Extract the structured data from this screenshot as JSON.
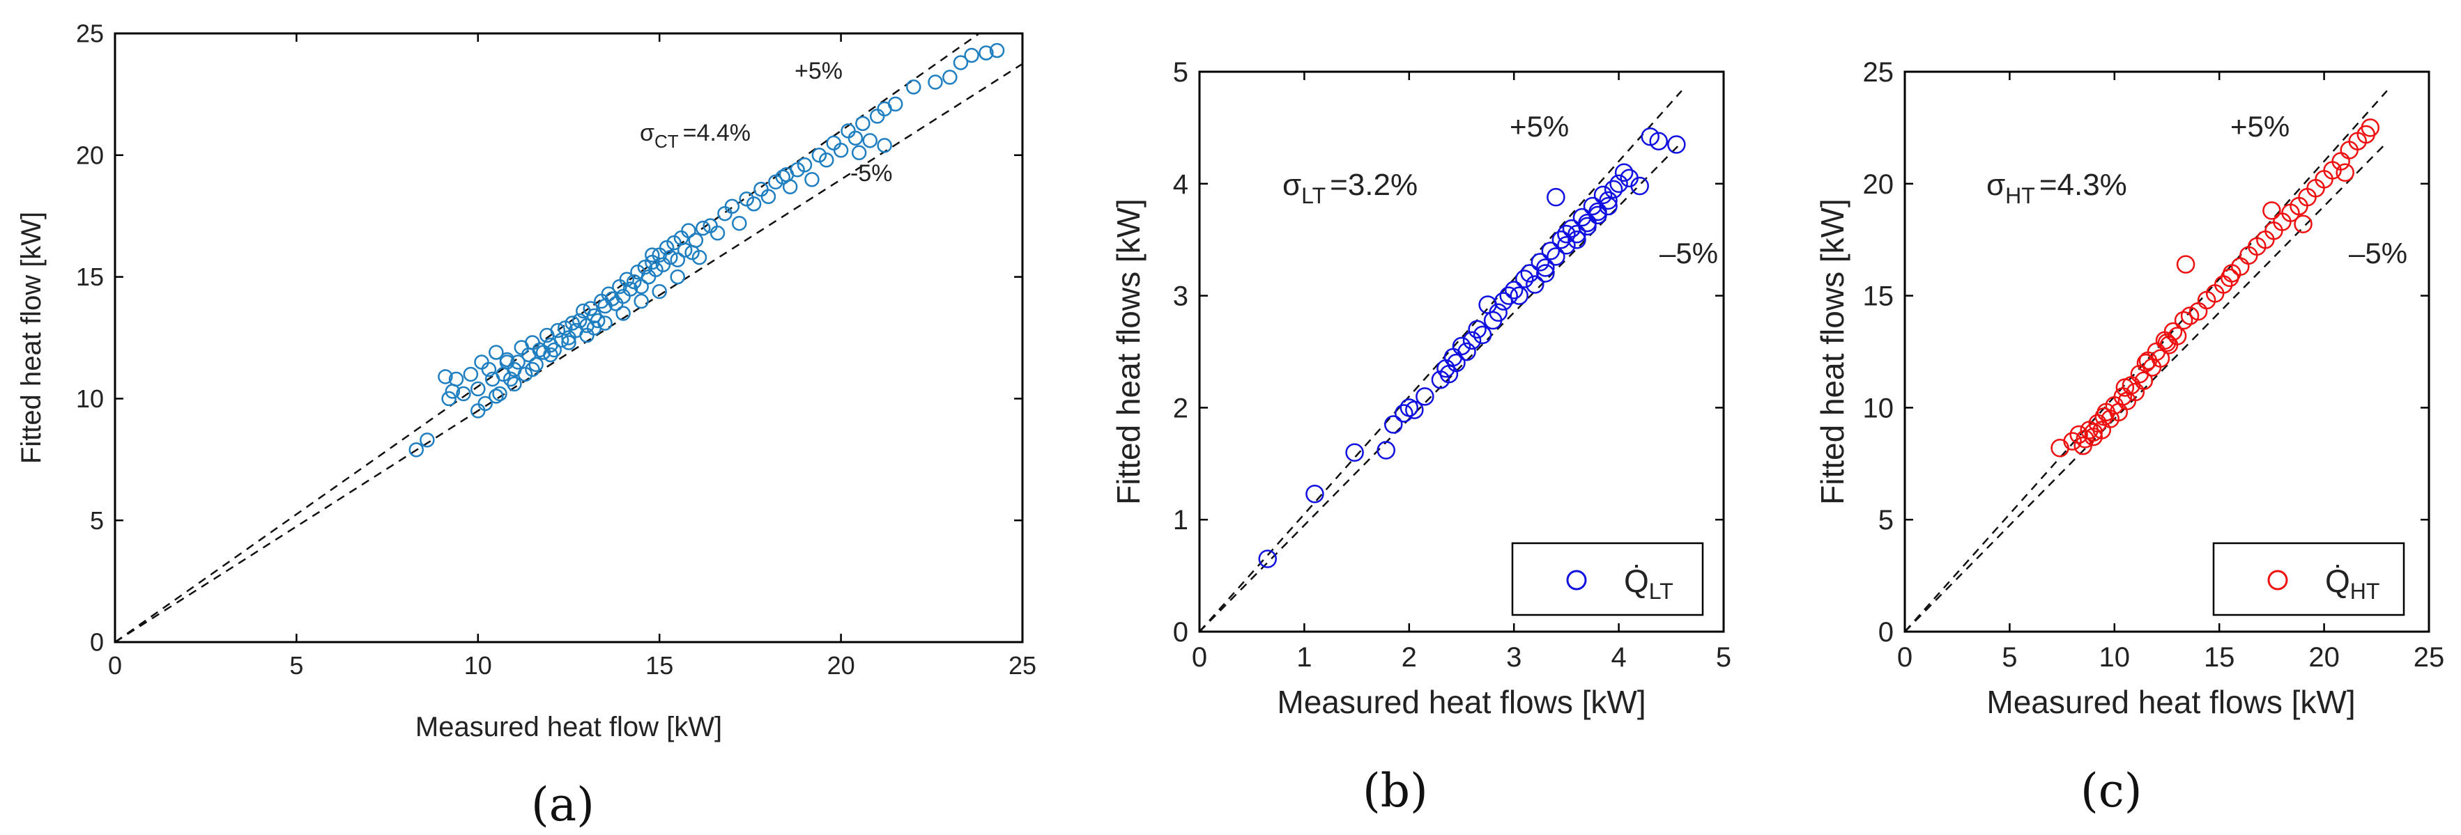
{
  "figure": {
    "panels": [
      "(a)",
      "(b)",
      "(c)"
    ]
  },
  "chart_data": [
    {
      "id": "a",
      "type": "scatter",
      "panel_label": "(a)",
      "xlabel": "Measured heat flow [kW]",
      "ylabel": "Fitted heat flow [kW]",
      "xlim": [
        0,
        25
      ],
      "ylim": [
        0,
        25
      ],
      "xticks": [
        "0",
        "5",
        "10",
        "15",
        "20",
        "25"
      ],
      "yticks": [
        "0",
        "5",
        "10",
        "15",
        "20",
        "25"
      ],
      "marker_color": "#1f7fc1",
      "reference_lines": [
        {
          "label": "+5%",
          "slope": 1.05
        },
        {
          "label": "-5%",
          "slope": 0.95
        }
      ],
      "sigma": {
        "symbol": "σ",
        "subscript": "CT",
        "value": "=4.4%"
      },
      "x": [
        8.3,
        8.6,
        9.1,
        9.2,
        9.4,
        9.6,
        9.8,
        10.0,
        10.1,
        10.2,
        10.3,
        10.4,
        10.5,
        10.6,
        10.7,
        10.8,
        10.9,
        11.0,
        11.1,
        11.2,
        11.3,
        11.4,
        11.5,
        11.6,
        11.7,
        11.8,
        11.9,
        12.0,
        12.1,
        12.2,
        12.3,
        12.4,
        12.5,
        12.6,
        12.7,
        12.8,
        12.9,
        13.0,
        13.1,
        13.2,
        13.3,
        13.4,
        13.5,
        13.6,
        13.7,
        13.8,
        13.9,
        14.0,
        14.1,
        14.2,
        14.3,
        14.4,
        14.5,
        14.6,
        14.7,
        14.8,
        14.9,
        15.0,
        15.1,
        15.2,
        15.3,
        15.4,
        15.5,
        15.6,
        15.7,
        15.8,
        15.9,
        16.0,
        16.2,
        16.4,
        16.6,
        16.8,
        17.0,
        17.2,
        17.4,
        17.6,
        17.8,
        18.0,
        18.2,
        18.4,
        18.6,
        18.8,
        19.0,
        19.2,
        19.4,
        19.6,
        19.8,
        20.0,
        20.2,
        20.4,
        20.6,
        20.8,
        21.0,
        21.2,
        21.5,
        22.0,
        22.6,
        23.0,
        23.3,
        23.6,
        24.0,
        24.3,
        10.0,
        10.5,
        11.0,
        11.5,
        12.0,
        12.5,
        13.0,
        13.5,
        14.0,
        14.5,
        15.0,
        15.5,
        9.3,
        10.8,
        13.2,
        14.8,
        16.1,
        18.5,
        20.5,
        21.2
      ],
      "y": [
        7.9,
        8.3,
        10.9,
        10.0,
        10.8,
        10.2,
        11.0,
        10.4,
        11.5,
        9.8,
        11.2,
        10.8,
        11.9,
        10.2,
        11.0,
        11.6,
        10.8,
        11.2,
        11.5,
        12.1,
        11.0,
        11.8,
        12.3,
        11.4,
        12.0,
        11.9,
        12.6,
        12.2,
        12.0,
        12.8,
        12.4,
        12.9,
        12.5,
        13.1,
        12.8,
        13.2,
        13.6,
        13.0,
        13.7,
        13.4,
        13.2,
        14.0,
        13.8,
        14.3,
        14.1,
        13.9,
        14.6,
        14.2,
        14.9,
        14.5,
        14.8,
        15.2,
        14.6,
        15.4,
        15.0,
        15.6,
        15.3,
        15.9,
        15.5,
        16.2,
        15.8,
        16.4,
        15.7,
        16.6,
        16.1,
        16.9,
        16.0,
        16.5,
        17.0,
        17.1,
        16.8,
        17.6,
        17.9,
        17.2,
        18.2,
        18.0,
        18.6,
        18.3,
        18.9,
        19.1,
        18.7,
        19.4,
        19.6,
        19.0,
        20.0,
        19.8,
        20.5,
        20.2,
        21.0,
        20.7,
        21.3,
        20.6,
        21.6,
        21.9,
        22.1,
        22.8,
        23.0,
        23.2,
        23.8,
        24.1,
        24.2,
        24.3,
        9.5,
        10.1,
        10.6,
        11.2,
        11.8,
        12.3,
        12.6,
        13.1,
        13.5,
        14.0,
        14.4,
        15.0,
        10.3,
        11.5,
        12.9,
        15.9,
        15.8,
        19.2,
        20.1,
        20.4
      ]
    },
    {
      "id": "b",
      "type": "scatter",
      "panel_label": "(b)",
      "xlabel": "Measured heat flows [kW]",
      "ylabel": "Fitted heat flows [kW]",
      "xlim": [
        0,
        5
      ],
      "ylim": [
        0,
        5
      ],
      "xticks": [
        "0",
        "1",
        "2",
        "3",
        "4",
        "5"
      ],
      "yticks": [
        "0",
        "1",
        "2",
        "3",
        "4",
        "5"
      ],
      "marker_color": "#1010e0",
      "reference_lines": [
        {
          "label": "+5%",
          "slope": 1.05
        },
        {
          "label": "–5%",
          "slope": 0.95
        }
      ],
      "sigma": {
        "symbol": "σ",
        "subscript": "LT",
        "value": "=3.2%"
      },
      "legend": {
        "symbol": "Q̇",
        "subscript": "LT",
        "position": "bottom-right"
      },
      "x": [
        0.65,
        1.1,
        1.48,
        1.78,
        1.85,
        1.95,
        2.0,
        2.05,
        2.15,
        2.3,
        2.35,
        2.38,
        2.42,
        2.45,
        2.5,
        2.55,
        2.6,
        2.65,
        2.7,
        2.75,
        2.8,
        2.85,
        2.9,
        2.95,
        3.0,
        3.05,
        3.1,
        3.15,
        3.2,
        3.25,
        3.3,
        3.35,
        3.4,
        3.45,
        3.5,
        3.55,
        3.6,
        3.65,
        3.7,
        3.75,
        3.8,
        3.85,
        3.9,
        3.95,
        4.0,
        4.05,
        4.1,
        4.2,
        4.3,
        4.38,
        4.55,
        3.4,
        3.6,
        3.8,
        3.3,
        3.5,
        3.7,
        3.9
      ],
      "y": [
        0.65,
        1.23,
        1.6,
        1.62,
        1.85,
        1.95,
        2.0,
        1.98,
        2.1,
        2.25,
        2.35,
        2.3,
        2.45,
        2.4,
        2.55,
        2.5,
        2.6,
        2.7,
        2.65,
        2.92,
        2.78,
        2.85,
        2.95,
        3.0,
        3.05,
        3.0,
        3.15,
        3.2,
        3.1,
        3.3,
        3.2,
        3.4,
        3.88,
        3.5,
        3.45,
        3.6,
        3.55,
        3.7,
        3.65,
        3.8,
        3.75,
        3.9,
        3.85,
        3.95,
        4.0,
        4.1,
        4.05,
        3.98,
        4.42,
        4.38,
        4.35,
        3.35,
        3.5,
        3.72,
        3.25,
        3.55,
        3.62,
        3.8
      ]
    },
    {
      "id": "c",
      "type": "scatter",
      "panel_label": "(c)",
      "xlabel": "Measured heat flows [kW]",
      "ylabel": "Fitted heat flows [kW]",
      "xlim": [
        0,
        25
      ],
      "ylim": [
        0,
        25
      ],
      "xticks": [
        "0",
        "5",
        "10",
        "15",
        "20",
        "25"
      ],
      "yticks": [
        "0",
        "5",
        "10",
        "15",
        "20",
        "25"
      ],
      "marker_color": "#ee1111",
      "reference_lines": [
        {
          "label": "+5%",
          "slope": 1.05
        },
        {
          "label": "–5%",
          "slope": 0.95
        }
      ],
      "sigma": {
        "symbol": "σ",
        "subscript": "HT",
        "value": "=4.3%"
      },
      "legend": {
        "symbol": "Q̇",
        "subscript": "HT",
        "position": "bottom-right"
      },
      "x": [
        7.4,
        8.0,
        8.3,
        8.6,
        8.8,
        9.0,
        9.2,
        9.4,
        9.6,
        9.8,
        10.0,
        10.2,
        10.4,
        10.6,
        10.8,
        11.0,
        11.2,
        11.4,
        11.6,
        11.8,
        12.0,
        12.2,
        12.4,
        12.6,
        12.8,
        13.0,
        13.3,
        13.6,
        14.0,
        14.4,
        14.8,
        15.2,
        15.6,
        16.0,
        16.4,
        16.8,
        17.2,
        17.6,
        18.0,
        18.4,
        18.8,
        19.2,
        19.6,
        20.0,
        20.4,
        20.8,
        21.2,
        21.6,
        22.0,
        22.2,
        8.5,
        9.0,
        9.5,
        10.5,
        11.5,
        12.5,
        13.4,
        15.5,
        17.5,
        19.0,
        21.0
      ],
      "y": [
        8.2,
        8.5,
        8.8,
        8.6,
        9.0,
        8.7,
        9.3,
        9.0,
        9.8,
        9.5,
        10.1,
        9.8,
        10.5,
        10.3,
        11.0,
        10.7,
        11.5,
        11.2,
        12.1,
        11.8,
        12.5,
        12.2,
        13.0,
        12.8,
        13.4,
        13.2,
        13.9,
        14.1,
        14.3,
        14.8,
        15.1,
        15.5,
        16.0,
        16.3,
        16.8,
        17.2,
        17.5,
        17.9,
        18.3,
        18.7,
        19.0,
        19.4,
        19.8,
        20.2,
        20.6,
        21.0,
        21.5,
        21.9,
        22.2,
        22.5,
        8.3,
        8.9,
        9.6,
        10.9,
        12.0,
        12.9,
        16.4,
        15.8,
        18.8,
        18.2,
        20.5
      ]
    }
  ]
}
